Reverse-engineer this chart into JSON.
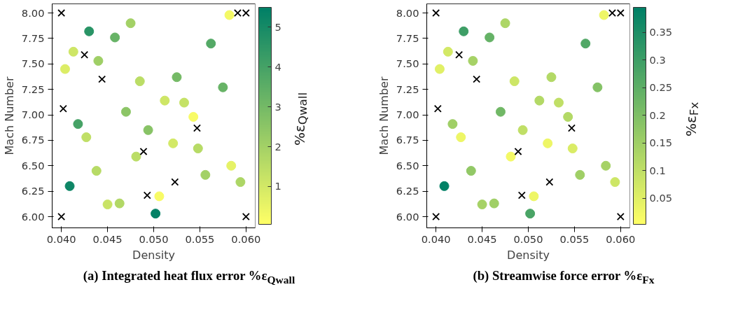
{
  "chart_data": [
    {
      "type": "scatter",
      "title": "(a) Integrated heat flux error %ε$_{Qwall}$",
      "xlabel": "Density",
      "ylabel": "Mach Number",
      "clabel": "%ε$_{Qwall}$",
      "xlim": [
        0.039,
        0.061
      ],
      "ylim": [
        5.89,
        8.09
      ],
      "xticks": [
        {
          "value": 0.04,
          "label": "0.040"
        },
        {
          "value": 0.045,
          "label": "0.045"
        },
        {
          "value": 0.05,
          "label": "0.050"
        },
        {
          "value": 0.055,
          "label": "0.055"
        },
        {
          "value": 0.06,
          "label": "0.060"
        }
      ],
      "yticks": [
        {
          "value": 6,
          "label": "6.00"
        },
        {
          "value": 6.25,
          "label": "6.25"
        },
        {
          "value": 6.5,
          "label": "6.50"
        },
        {
          "value": 6.75,
          "label": "6.75"
        },
        {
          "value": 7,
          "label": "7.00"
        },
        {
          "value": 7.25,
          "label": "7.25"
        },
        {
          "value": 7.5,
          "label": "7.50"
        },
        {
          "value": 7.75,
          "label": "7.75"
        },
        {
          "value": 8,
          "label": "8.00"
        }
      ],
      "clim": [
        0.05,
        5.5
      ],
      "cticks": [
        1,
        2,
        3,
        4,
        5
      ],
      "grid": false,
      "series": [
        {
          "marker": "circle",
          "x": [
            0.0475,
            0.043,
            0.0458,
            0.0413,
            0.044,
            0.0404,
            0.0485,
            0.0525,
            0.0512,
            0.0533,
            0.0543,
            0.047,
            0.0418,
            0.0427,
            0.0494,
            0.0521,
            0.0548,
            0.0481,
            0.0438,
            0.0584,
            0.0556,
            0.0594,
            0.0409,
            0.045,
            0.0463,
            0.0506,
            0.0502,
            0.0562,
            0.0575,
            0.0582
          ],
          "values": [
            7.9,
            7.82,
            7.76,
            7.62,
            7.53,
            7.45,
            7.33,
            7.37,
            7.14,
            7.12,
            6.98,
            7.03,
            6.91,
            6.78,
            6.85,
            6.72,
            6.67,
            6.59,
            6.45,
            6.5,
            6.41,
            6.34,
            6.3,
            6.12,
            6.13,
            6.2,
            6.03,
            7.7,
            7.27,
            7.98
          ],
          "cvalues": [
            2.0,
            4.6,
            3.3,
            1.1,
            2.1,
            0.8,
            1.5,
            3.0,
            1.1,
            1.3,
            0.2,
            2.5,
            4.0,
            1.4,
            2.6,
            1.0,
            1.6,
            1.5,
            1.6,
            0.6,
            2.0,
            1.8,
            5.2,
            1.2,
            1.7,
            0.2,
            5.4,
            3.7,
            3.3,
            0.3
          ],
          "colors": [
            "#a4d166",
            "#2a9466",
            "#67b366",
            "#cee666",
            "#9fcf66",
            "#dced66",
            "#bbdd66",
            "#75ba66",
            "#cee666",
            "#c5e266",
            "#f8fb66",
            "#8cc666",
            "#46a366",
            "#c0df66",
            "#88c366",
            "#d3e966",
            "#b7db66",
            "#bbdd66",
            "#b7db66",
            "#e5f266",
            "#a4d166",
            "#add666",
            "#0e8666",
            "#c9e466",
            "#b2d866",
            "#f8fb66",
            "#058266",
            "#54aa66",
            "#67b366",
            "#f3f966"
          ]
        },
        {
          "marker": "cross",
          "color": "#000000",
          "x": [
            0.04,
            0.0425,
            0.0444,
            0.0402,
            0.0547,
            0.0489,
            0.0523,
            0.0493,
            0.04,
            0.06,
            0.0591,
            0.06
          ],
          "values": [
            8.0,
            7.59,
            7.35,
            7.06,
            6.87,
            6.64,
            6.34,
            6.21,
            6.0,
            6.0,
            8.0,
            8.0
          ]
        }
      ]
    },
    {
      "type": "scatter",
      "title": "(b) Streamwise force error %ε$_{Fx}$",
      "xlabel": "Density",
      "ylabel": "Mach Number",
      "clabel": "%ε$_{Fx}$",
      "xlim": [
        0.039,
        0.061
      ],
      "ylim": [
        5.89,
        8.09
      ],
      "xticks": [
        {
          "value": 0.04,
          "label": "0.040"
        },
        {
          "value": 0.045,
          "label": "0.045"
        },
        {
          "value": 0.05,
          "label": "0.050"
        },
        {
          "value": 0.055,
          "label": "0.055"
        },
        {
          "value": 0.06,
          "label": "0.060"
        }
      ],
      "yticks": [
        {
          "value": 6,
          "label": "6.00"
        },
        {
          "value": 6.25,
          "label": "6.25"
        },
        {
          "value": 6.5,
          "label": "6.50"
        },
        {
          "value": 6.75,
          "label": "6.75"
        },
        {
          "value": 7,
          "label": "7.00"
        },
        {
          "value": 7.25,
          "label": "7.25"
        },
        {
          "value": 7.5,
          "label": "7.50"
        },
        {
          "value": 7.75,
          "label": "7.75"
        },
        {
          "value": 8,
          "label": "8.00"
        }
      ],
      "clim": [
        0.003,
        0.395
      ],
      "cticks": [
        0.05,
        0.1,
        0.15,
        0.2,
        0.25,
        0.3,
        0.35
      ],
      "grid": false,
      "series": [
        {
          "marker": "circle",
          "x": [
            0.0475,
            0.043,
            0.0458,
            0.0413,
            0.044,
            0.0404,
            0.0485,
            0.0525,
            0.0512,
            0.0533,
            0.0543,
            0.047,
            0.0418,
            0.0427,
            0.0494,
            0.0521,
            0.0548,
            0.0481,
            0.0438,
            0.0584,
            0.0556,
            0.0594,
            0.0409,
            0.045,
            0.0463,
            0.0506,
            0.0502,
            0.0562,
            0.0575,
            0.0582
          ],
          "values": [
            7.9,
            7.82,
            7.76,
            7.62,
            7.53,
            7.45,
            7.33,
            7.37,
            7.14,
            7.12,
            6.98,
            7.03,
            6.91,
            6.78,
            6.85,
            6.72,
            6.67,
            6.59,
            6.45,
            6.5,
            6.41,
            6.34,
            6.3,
            6.12,
            6.13,
            6.2,
            6.03,
            7.7,
            7.27,
            7.98
          ],
          "cvalues": [
            0.13,
            0.3,
            0.24,
            0.07,
            0.14,
            0.05,
            0.08,
            0.12,
            0.12,
            0.1,
            0.12,
            0.22,
            0.15,
            0.03,
            0.1,
            0.03,
            0.06,
            0.02,
            0.17,
            0.14,
            0.15,
            0.08,
            0.39,
            0.14,
            0.15,
            0.03,
            0.28,
            0.27,
            0.19,
            0.03
          ],
          "colors": [
            "#acd666",
            "#3e9e66",
            "#65b266",
            "#d3e966",
            "#a6d266",
            "#e0f066",
            "#cde666",
            "#b3d966",
            "#b3d966",
            "#c0df66",
            "#b3d966",
            "#72b866",
            "#9fcf66",
            "#edf666",
            "#c0df66",
            "#edf666",
            "#daec66",
            "#f4f966",
            "#92c966",
            "#a6d266",
            "#9fcf66",
            "#cde666",
            "#038166",
            "#a6d266",
            "#9fcf66",
            "#edf666",
            "#4ba566",
            "#51a866",
            "#85c266",
            "#edf666"
          ]
        },
        {
          "marker": "cross",
          "color": "#000000",
          "x": [
            0.04,
            0.0425,
            0.0444,
            0.0402,
            0.0547,
            0.0489,
            0.0523,
            0.0493,
            0.04,
            0.06,
            0.0591,
            0.06
          ],
          "values": [
            8.0,
            7.59,
            7.35,
            7.06,
            6.87,
            6.64,
            6.34,
            6.21,
            6.0,
            6.0,
            8.0,
            8.0
          ]
        }
      ]
    }
  ]
}
